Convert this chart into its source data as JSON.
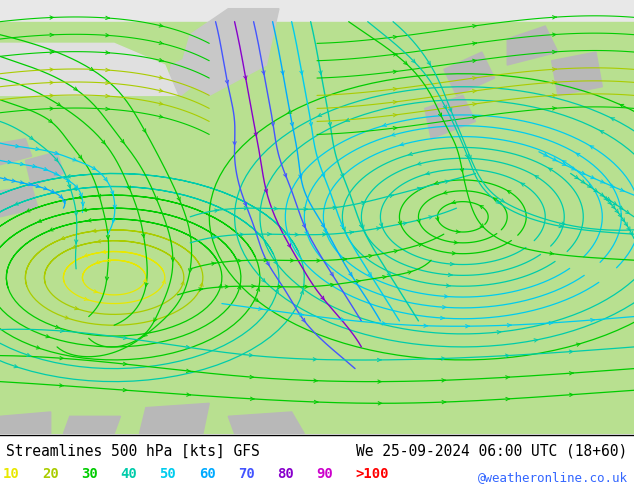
{
  "title_left": "Streamlines 500 hPa [kts] GFS",
  "title_right": "We 25-09-2024 06:00 UTC (18+60)",
  "credit": "@weatheronline.co.uk",
  "legend_values": [
    "10",
    "20",
    "30",
    "40",
    "50",
    "60",
    "70",
    "80",
    "90",
    ">100"
  ],
  "legend_colors": [
    "#e8e800",
    "#aacc00",
    "#00cc00",
    "#00ccaa",
    "#00ccee",
    "#00aaff",
    "#4455ff",
    "#8800cc",
    "#cc00cc",
    "#ff0000"
  ],
  "bg_green": "#b8e090",
  "bg_gray": "#c8c8c8",
  "bg_white": "#f0f0f0",
  "border_color": "#888888",
  "title_fontsize": 10.5,
  "credit_fontsize": 9,
  "legend_fontsize": 10,
  "figsize": [
    6.34,
    4.9
  ],
  "dpi": 100
}
